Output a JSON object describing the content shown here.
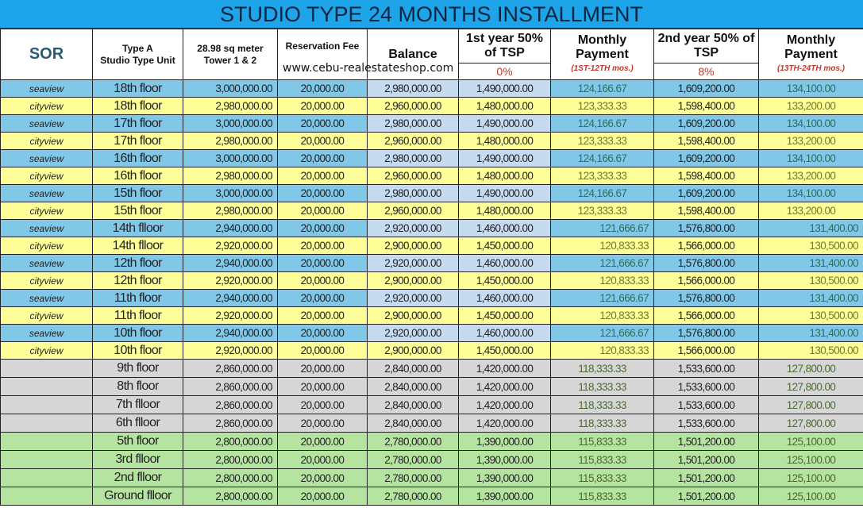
{
  "title": "STUDIO TYPE 24 MONTHS INSTALLMENT",
  "watermark": "www.cebu-realestateshop.com",
  "headers": {
    "sor": "SOR",
    "type_line1": "Type A",
    "type_line2": "Studio Type Unit",
    "area_line1": "28.98 sq meter",
    "area_line2": "Tower 1 & 2",
    "reservation": "Reservation Fee",
    "balance": "Balance",
    "first_year": "1st year 50% of TSP",
    "first_year_pct": "0%",
    "monthly1": "Monthly Payment",
    "monthly1_note": "(1ST-12TH mos.)",
    "second_year": "2nd year 50% of TSP",
    "second_year_pct": "8%",
    "monthly2": "Monthly Payment",
    "monthly2_note": "(13TH-24TH mos.)"
  },
  "colors": {
    "title_bar": "#1ea5e9",
    "seaview": "#80c7e8",
    "cityview": "#ffff99",
    "grey": "#d6d6d6",
    "green": "#b5e3a0"
  },
  "rows": [
    {
      "group": "sea",
      "view": "seaview",
      "floor": "18th floor",
      "price": "3,000,000.00",
      "res": "20,000.00",
      "bal": "2,980,000.00",
      "y1": "1,490,000.00",
      "m1": "124,166.67",
      "y2": "1,609,200.00",
      "m2": "134,100.00"
    },
    {
      "group": "city",
      "view": "cityview",
      "floor": "18th floor",
      "price": "2,980,000.00",
      "res": "20,000.00",
      "bal": "2,960,000.00",
      "y1": "1,480,000.00",
      "m1": "123,333.33",
      "y2": "1,598,400.00",
      "m2": "133,200.00"
    },
    {
      "group": "sea",
      "view": "seaview",
      "floor": "17th floor",
      "price": "3,000,000.00",
      "res": "20,000.00",
      "bal": "2,980,000.00",
      "y1": "1,490,000.00",
      "m1": "124,166.67",
      "y2": "1,609,200.00",
      "m2": "134,100.00"
    },
    {
      "group": "city",
      "view": "cityview",
      "floor": "17th floor",
      "price": "2,980,000.00",
      "res": "20,000.00",
      "bal": "2,960,000.00",
      "y1": "1,480,000.00",
      "m1": "123,333.33",
      "y2": "1,598,400.00",
      "m2": "133,200.00"
    },
    {
      "group": "sea",
      "view": "seaview",
      "floor": "16th floor",
      "price": "3,000,000.00",
      "res": "20,000.00",
      "bal": "2,980,000.00",
      "y1": "1,490,000.00",
      "m1": "124,166.67",
      "y2": "1,609,200.00",
      "m2": "134,100.00"
    },
    {
      "group": "city",
      "view": "cityview",
      "floor": "16th floor",
      "price": "2,980,000.00",
      "res": "20,000.00",
      "bal": "2,960,000.00",
      "y1": "1,480,000.00",
      "m1": "123,333.33",
      "y2": "1,598,400.00",
      "m2": "133,200.00"
    },
    {
      "group": "sea",
      "view": "seaview",
      "floor": "15th floor",
      "price": "3,000,000.00",
      "res": "20,000.00",
      "bal": "2,980,000.00",
      "y1": "1,490,000.00",
      "m1": "124,166.67",
      "y2": "1,609,200.00",
      "m2": "134,100.00"
    },
    {
      "group": "city",
      "view": "cityview",
      "floor": "15th floor",
      "price": "2,980,000.00",
      "res": "20,000.00",
      "bal": "2,960,000.00",
      "y1": "1,480,000.00",
      "m1": "123,333.33",
      "y2": "1,598,400.00",
      "m2": "133,200.00"
    },
    {
      "group": "sea",
      "view": "seaview",
      "floor": "14th flloor",
      "price": "2,940,000.00",
      "res": "20,000.00",
      "bal": "2,920,000.00",
      "y1": "1,460,000.00",
      "m1": "121,666.67",
      "y2": "1,576,800.00",
      "m2": "131,400.00",
      "right": true
    },
    {
      "group": "city",
      "view": "cityview",
      "floor": "14th flloor",
      "price": "2,920,000.00",
      "res": "20,000.00",
      "bal": "2,900,000.00",
      "y1": "1,450,000.00",
      "m1": "120,833.33",
      "y2": "1,566,000.00",
      "m2": "130,500.00",
      "right": true
    },
    {
      "group": "sea",
      "view": "seaview",
      "floor": "12th floor",
      "price": "2,940,000.00",
      "res": "20,000.00",
      "bal": "2,920,000.00",
      "y1": "1,460,000.00",
      "m1": "121,666.67",
      "y2": "1,576,800.00",
      "m2": "131,400.00",
      "right": true
    },
    {
      "group": "city",
      "view": "cityview",
      "floor": "12th floor",
      "price": "2,920,000.00",
      "res": "20,000.00",
      "bal": "2,900,000.00",
      "y1": "1,450,000.00",
      "m1": "120,833.33",
      "y2": "1,566,000.00",
      "m2": "130,500.00",
      "right": true
    },
    {
      "group": "sea",
      "view": "seaview",
      "floor": "11th floor",
      "price": "2,940,000.00",
      "res": "20,000.00",
      "bal": "2,920,000.00",
      "y1": "1,460,000.00",
      "m1": "121,666.67",
      "y2": "1,576,800.00",
      "m2": "131,400.00",
      "right": true
    },
    {
      "group": "city",
      "view": "cityview",
      "floor": "11th floor",
      "price": "2,920,000.00",
      "res": "20,000.00",
      "bal": "2,900,000.00",
      "y1": "1,450,000.00",
      "m1": "120,833.33",
      "y2": "1,566,000.00",
      "m2": "130,500.00",
      "right": true
    },
    {
      "group": "sea",
      "view": "seaview",
      "floor": "10th floor",
      "price": "2,940,000.00",
      "res": "20,000.00",
      "bal": "2,920,000.00",
      "y1": "1,460,000.00",
      "m1": "121,666.67",
      "y2": "1,576,800.00",
      "m2": "131,400.00",
      "right": true
    },
    {
      "group": "city",
      "view": "cityview",
      "floor": "10th floor",
      "price": "2,920,000.00",
      "res": "20,000.00",
      "bal": "2,900,000.00",
      "y1": "1,450,000.00",
      "m1": "120,833.33",
      "y2": "1,566,000.00",
      "m2": "130,500.00",
      "right": true
    },
    {
      "group": "grey",
      "view": "",
      "floor": "9th floor",
      "price": "2,860,000.00",
      "res": "20,000.00",
      "bal": "2,840,000.00",
      "y1": "1,420,000.00",
      "m1": "118,333.33",
      "y2": "1,533,600.00",
      "m2": "127,800.00"
    },
    {
      "group": "grey",
      "view": "",
      "floor": "8th floor",
      "price": "2,860,000.00",
      "res": "20,000.00",
      "bal": "2,840,000.00",
      "y1": "1,420,000.00",
      "m1": "118,333.33",
      "y2": "1,533,600.00",
      "m2": "127,800.00"
    },
    {
      "group": "grey",
      "view": "",
      "floor": "7th flloor",
      "price": "2,860,000.00",
      "res": "20,000.00",
      "bal": "2,840,000.00",
      "y1": "1,420,000.00",
      "m1": "118,333.33",
      "y2": "1,533,600.00",
      "m2": "127,800.00"
    },
    {
      "group": "grey",
      "view": "",
      "floor": "6th flloor",
      "price": "2,860,000.00",
      "res": "20,000.00",
      "bal": "2,840,000.00",
      "y1": "1,420,000.00",
      "m1": "118,333.33",
      "y2": "1,533,600.00",
      "m2": "127,800.00"
    },
    {
      "group": "green",
      "view": "",
      "floor": "5th floor",
      "price": "2,800,000.00",
      "res": "20,000.00",
      "bal": "2,780,000.00",
      "y1": "1,390,000.00",
      "m1": "115,833.33",
      "y2": "1,501,200.00",
      "m2": "125,100.00"
    },
    {
      "group": "green",
      "view": "",
      "floor": "3rd flloor",
      "price": "2,800,000.00",
      "res": "20,000.00",
      "bal": "2,780,000.00",
      "y1": "1,390,000.00",
      "m1": "115,833.33",
      "y2": "1,501,200.00",
      "m2": "125,100.00"
    },
    {
      "group": "green",
      "view": "",
      "floor": "2nd flloor",
      "price": "2,800,000.00",
      "res": "20,000.00",
      "bal": "2,780,000.00",
      "y1": "1,390,000.00",
      "m1": "115,833.33",
      "y2": "1,501,200.00",
      "m2": "125,100.00"
    },
    {
      "group": "green",
      "view": "",
      "floor": "Ground flloor",
      "price": "2,800,000.00",
      "res": "20,000.00",
      "bal": "2,780,000.00",
      "y1": "1,390,000.00",
      "m1": "115,833.33",
      "y2": "1,501,200.00",
      "m2": "125,100.00"
    }
  ]
}
